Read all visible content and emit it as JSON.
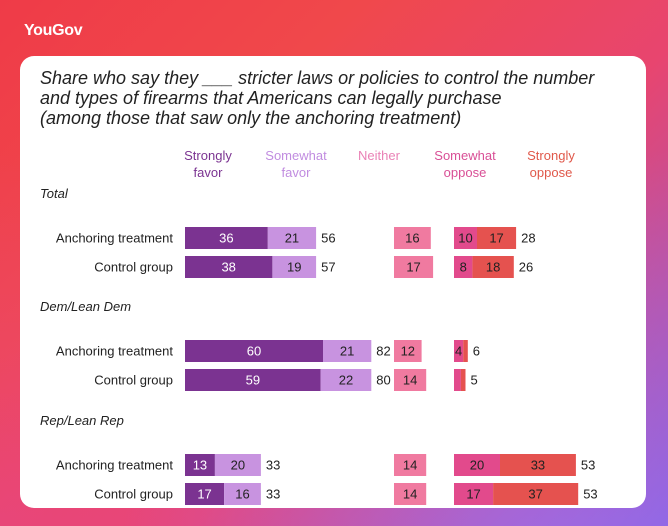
{
  "brand": "YouGov",
  "chart_data": {
    "type": "bar",
    "title": "Share who say they ___ stricter laws or policies to control the number and types of firearms that Americans can legally purchase (among those that saw only the anchoring treatment)",
    "title_lines": [
      "Share who say they ___ stricter laws or policies to control the number",
      "and types of firearms that Americans can legally purchase",
      "(among those that saw only the anchoring treatment)"
    ],
    "columns": [
      {
        "key": "strongly_favor",
        "lines": [
          "Strongly",
          "favor"
        ],
        "color": "#7b3391",
        "label_color": "#7b3391"
      },
      {
        "key": "somewhat_favor",
        "lines": [
          "Somewhat",
          "favor"
        ],
        "color": "#c893e0",
        "label_color": "#c18ce0"
      },
      {
        "key": "neither",
        "lines": [
          "Neither"
        ],
        "color": "#f07aa0",
        "label_color": "#ea82b6"
      },
      {
        "key": "somewhat_oppose",
        "lines": [
          "Somewhat",
          "oppose"
        ],
        "color": "#e24a8c",
        "label_color": "#d94f96"
      },
      {
        "key": "strongly_oppose",
        "lines": [
          "Strongly",
          "oppose"
        ],
        "color": "#e5524f",
        "label_color": "#e0584a"
      }
    ],
    "groups": [
      {
        "name": "Total",
        "rows": [
          {
            "label": "Anchoring treatment",
            "strongly_favor": 36,
            "somewhat_favor": 21,
            "favor_total": 56,
            "neither": 16,
            "somewhat_oppose": 10,
            "strongly_oppose": 17,
            "oppose_total": 28
          },
          {
            "label": "Control group",
            "strongly_favor": 38,
            "somewhat_favor": 19,
            "favor_total": 57,
            "neither": 17,
            "somewhat_oppose": 8,
            "strongly_oppose": 18,
            "oppose_total": 26
          }
        ]
      },
      {
        "name": "Dem/Lean Dem",
        "rows": [
          {
            "label": "Anchoring treatment",
            "strongly_favor": 60,
            "somewhat_favor": 21,
            "favor_total": 82,
            "neither": 12,
            "somewhat_oppose": 4,
            "strongly_oppose": 2,
            "oppose_total": 6
          },
          {
            "label": "Control group",
            "strongly_favor": 59,
            "somewhat_favor": 22,
            "favor_total": 80,
            "neither": 14,
            "somewhat_oppose": 3,
            "strongly_oppose": 2,
            "oppose_total": 5
          }
        ]
      },
      {
        "name": "Rep/Lean Rep",
        "rows": [
          {
            "label": "Anchoring treatment",
            "strongly_favor": 13,
            "somewhat_favor": 20,
            "favor_total": 33,
            "neither": 14,
            "somewhat_oppose": 20,
            "strongly_oppose": 33,
            "oppose_total": 53
          },
          {
            "label": "Control group",
            "strongly_favor": 17,
            "somewhat_favor": 16,
            "favor_total": 33,
            "neither": 14,
            "somewhat_oppose": 17,
            "strongly_oppose": 37,
            "oppose_total": 53
          }
        ]
      }
    ],
    "hidden_segment_labels": [
      "Dem/Lean Dem|Anchoring treatment|strongly_oppose",
      "Dem/Lean Dem|Control group|somewhat_oppose",
      "Dem/Lean Dem|Control group|strongly_oppose"
    ]
  }
}
